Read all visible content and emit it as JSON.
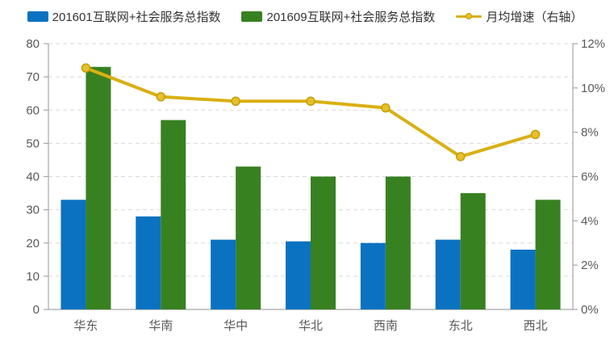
{
  "chart_data": {
    "type": "combo-bar-line",
    "title": "",
    "categories": [
      "华东",
      "华南",
      "华中",
      "华北",
      "西南",
      "东北",
      "西北"
    ],
    "series": [
      {
        "name": "201601互联网+社会服务总指数",
        "type": "bar",
        "axis": "left",
        "color": "#0a72c0",
        "values": [
          33,
          28,
          21,
          20.5,
          20,
          21,
          18
        ]
      },
      {
        "name": "201609互联网+社会服务总指数",
        "type": "bar",
        "axis": "left",
        "color": "#388121",
        "values": [
          73,
          57,
          43,
          40,
          40,
          35,
          33
        ]
      },
      {
        "name": "月均增速（右轴）",
        "type": "line",
        "axis": "right",
        "color": "#d9b013",
        "marker_fill": "#e6c02a",
        "marker_stroke": "#c49d0a",
        "unit": "%",
        "values": [
          10.9,
          9.6,
          9.4,
          9.4,
          9.1,
          6.9,
          7.9
        ]
      }
    ],
    "left_axis": {
      "min": 0,
      "max": 80,
      "step": 10,
      "tick_labels": [
        "0",
        "10",
        "20",
        "30",
        "40",
        "50",
        "60",
        "70",
        "80"
      ]
    },
    "right_axis": {
      "min": 0,
      "max": 12,
      "step": 2,
      "suffix": "%",
      "tick_labels": [
        "0%",
        "2%",
        "4%",
        "6%",
        "8%",
        "10%",
        "12%"
      ]
    },
    "grid": "horizontal-dashed",
    "legend_position": "top"
  },
  "style_colors": {
    "grid_line": "#d9d9d9",
    "axis_line": "#a6a6a6",
    "axis_text": "#595959",
    "legend_text": "#333333"
  }
}
